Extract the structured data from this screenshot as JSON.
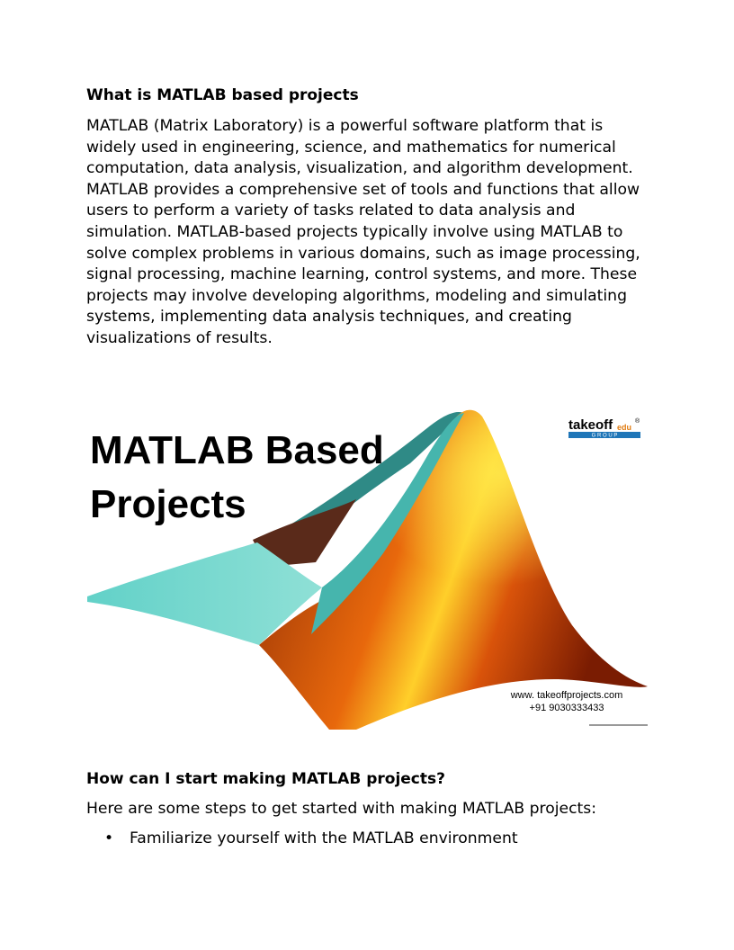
{
  "intro": {
    "heading": "What is MATLAB based projects",
    "body": "MATLAB (Matrix Laboratory) is a powerful software platform that is widely used in engineering, science, and mathematics for numerical computation, data analysis, visualization, and algorithm development. MATLAB provides a comprehensive set of tools and functions that allow users to perform a variety of tasks related to data analysis and simulation. MATLAB-based projects typically involve using MATLAB to solve complex problems in various domains, such as image processing, signal processing, machine learning, control systems, and more. These projects may involve developing algorithms, modeling and simulating systems, implementing data analysis techniques, and creating visualizations of results."
  },
  "banner": {
    "title_lines": [
      "MATLAB Based",
      "Projects"
    ],
    "logo": {
      "brand": "takeoff",
      "suffix": "edu",
      "mark": "®",
      "tagline": "G R O U P"
    },
    "website": "www. takeoffprojects.com",
    "phone": "+91 9030333433"
  },
  "start": {
    "heading": "How can I start making MATLAB projects?",
    "body": "Here are some steps to get started with making MATLAB projects:",
    "bullets": [
      "Familiarize yourself with the MATLAB environment"
    ]
  }
}
